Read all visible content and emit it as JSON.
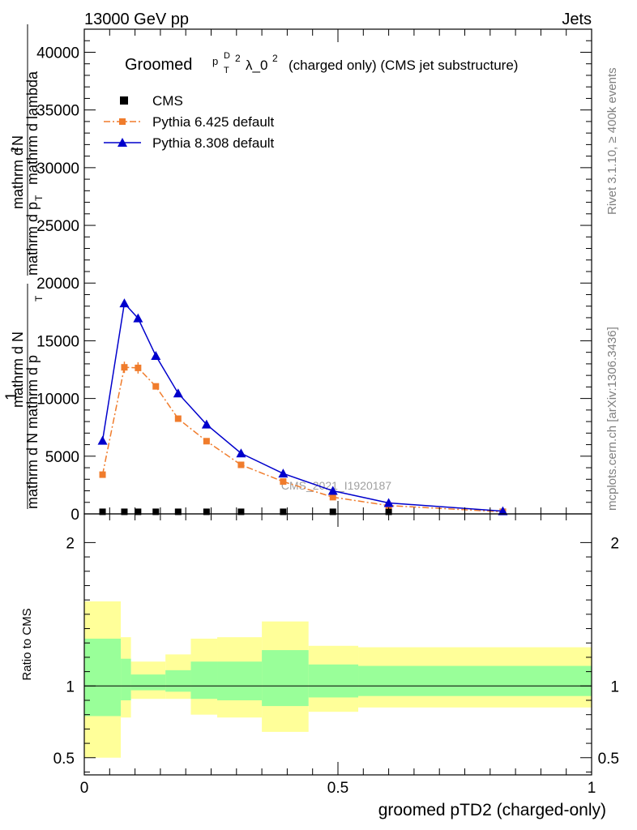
{
  "header": {
    "energy_label": "13000 GeV pp",
    "category_label": "Jets"
  },
  "side": {
    "rivet_label": "Rivet 3.1.10, ≥ 400k events",
    "mcplots_label": "mcplots.cern.ch [arXiv:1306.3436]"
  },
  "chart_data": {
    "type": "line",
    "title_prefix": "Groomed",
    "title_sym_p": "p",
    "title_sup_d": "D",
    "title_sub_t": "T",
    "title_sup_2": "2",
    "title_lambda": "λ_0",
    "title_sup_2b": "2",
    "title_suffix": "(charged only) (CMS jet substructure)",
    "ylabel_parts": {
      "one": "1",
      "frac_num": "mathrm d N",
      "frac_den": "mathrm d N mathrm d p",
      "frac_den_sub": "T",
      "right_num": "mathrm d",
      "right_num_sup": "2",
      "right_num_tail": "N",
      "right_den": "mathrm d p",
      "right_den_sub": "T",
      "right_den_tail": "mathrm d lambda"
    },
    "xlabel": "groomed pTD2 (charged-only)",
    "ratio_ylabel": "Ratio to CMS",
    "watermark": "CMS_2021_I1920187",
    "xlim": [
      0,
      1
    ],
    "ylim": [
      0,
      42000
    ],
    "ratio_ylim": [
      0.38,
      2.2
    ],
    "x_ticks": [
      "0",
      "0.5",
      "1"
    ],
    "x_tick_values": [
      0,
      0.5,
      1
    ],
    "y_ticks": [
      "0",
      "5000",
      "10000",
      "15000",
      "20000",
      "25000",
      "30000",
      "35000",
      "40000"
    ],
    "y_tick_values": [
      0,
      5000,
      10000,
      15000,
      20000,
      25000,
      30000,
      35000,
      40000
    ],
    "ratio_ticks": [
      "0.5",
      "1",
      "2"
    ],
    "ratio_tick_values": [
      0.5,
      1,
      2
    ],
    "legend_position": "top-left",
    "legend": [
      {
        "name": "CMS",
        "color": "#000000",
        "marker": "square"
      },
      {
        "name": "Pythia 6.425 default",
        "color": "#f07c2c",
        "marker": "square"
      },
      {
        "name": "Pythia 8.308 default",
        "color": "#0000cc",
        "marker": "triangle"
      }
    ],
    "series": [
      {
        "name": "CMS",
        "color": "#000000",
        "x": [
          0.036,
          0.079,
          0.106,
          0.141,
          0.185,
          0.241,
          0.309,
          0.392,
          0.49,
          0.6,
          0.825
        ],
        "values": [
          40,
          40,
          40,
          40,
          40,
          40,
          40,
          40,
          40,
          40,
          40
        ]
      },
      {
        "name": "Pythia 6.425 default",
        "color": "#f07c2c",
        "x": [
          0.036,
          0.079,
          0.106,
          0.141,
          0.185,
          0.241,
          0.309,
          0.392,
          0.49,
          0.6,
          0.825
        ],
        "values": [
          3400,
          12700,
          12650,
          11050,
          8250,
          6300,
          4250,
          2800,
          1450,
          720,
          180
        ]
      },
      {
        "name": "Pythia 8.308 default",
        "color": "#0000cc",
        "x": [
          0.036,
          0.079,
          0.106,
          0.141,
          0.185,
          0.241,
          0.309,
          0.392,
          0.49,
          0.6,
          0.825
        ],
        "values": [
          6350,
          18250,
          16950,
          13700,
          10450,
          7750,
          5250,
          3500,
          2000,
          950,
          240
        ]
      }
    ],
    "ratio_bands": {
      "edges": [
        0,
        0.072,
        0.092,
        0.16,
        0.21,
        0.262,
        0.35,
        0.442,
        0.54,
        1.0
      ],
      "yellow_low": [
        0.5,
        0.78,
        0.91,
        0.91,
        0.8,
        0.78,
        0.68,
        0.82,
        0.85
      ],
      "yellow_high": [
        1.59,
        1.34,
        1.17,
        1.22,
        1.33,
        1.34,
        1.45,
        1.28,
        1.27
      ],
      "green_low": [
        0.79,
        0.9,
        0.97,
        0.96,
        0.91,
        0.9,
        0.86,
        0.92,
        0.93
      ],
      "green_high": [
        1.33,
        1.19,
        1.08,
        1.11,
        1.17,
        1.17,
        1.25,
        1.15,
        1.14
      ]
    }
  }
}
